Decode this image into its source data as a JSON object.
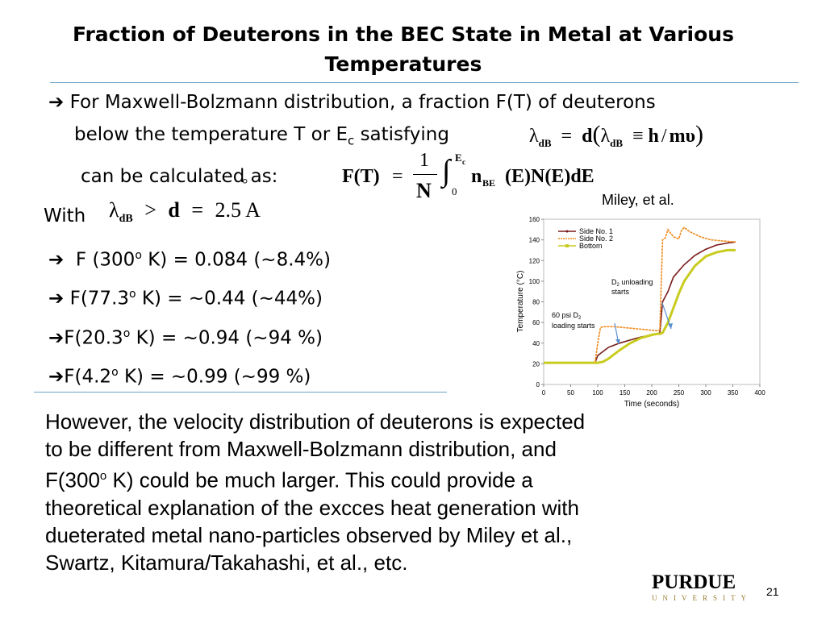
{
  "slide": {
    "title": "Fraction of Deuterons in the BEC State in Metal at Various Temperatures",
    "bullet1_line1": "For Maxwell-Bolzmann distribution, a fraction F(T) of deuterons",
    "bullet1_line2a": "below the temperature T or E",
    "bullet1_line2_sub": "c",
    "bullet1_line2b": " satisfying",
    "bullet1_line3": "can be calculated as:",
    "with_label": "With",
    "results": [
      {
        "pre": "F (300",
        "sup": "o",
        "post": " K) = 0.084 (~8.4%)"
      },
      {
        "pre": "F(77.3",
        "sup": "o",
        "post": " K) = ~0.44 (~44%)"
      },
      {
        "pre": "F(20.3",
        "sup": "o",
        "post": " K) = ~0.94 (~94 %)"
      },
      {
        "pre": "F(4.2",
        "sup": "o",
        "post": " K)  =  ~0.99 (~99 %)"
      }
    ],
    "citation": "Miley, et al.",
    "paragraph": {
      "l1": "However, the velocity distribution of deuterons is expected",
      "l2": "to be different from Maxwell-Bolzmann distribution, and",
      "l3a": "F(300",
      "l3sup": "o",
      "l3b": " K) could be much larger.  This could provide a",
      "l4": "theoretical explanation of the excces heat generation with",
      "l5": "dueterated metal nano-particles observed by Miley et al.,",
      "l6": "Swartz, Kitamura/Takahashi, et al., etc."
    },
    "logo_main": "PURDUE",
    "logo_sub": "UNIVERSITY",
    "page_number": "21"
  },
  "equations": {
    "eq1": {
      "lambda": "λ",
      "sub_dB": "dB",
      "eq": "=",
      "d": "d",
      "lparen": "(",
      "equiv": "≡",
      "h": "h",
      "slash": "/",
      "mv": "mυ",
      "rparen": ")"
    },
    "eq2": {
      "lhs": "F(T)",
      "eq": "=",
      "num": "1",
      "den": "N",
      "integral": "∫",
      "upper": "E",
      "upper_sub": "c",
      "lower": "0",
      "n": "n",
      "n_sub": "BE",
      "rest": "(E)N(E)dE"
    },
    "eq3": {
      "lambda": "λ",
      "sub_dB": "dB",
      "gt": ">",
      "d": "d",
      "eq": "=",
      "value": "2.5",
      "unit": "A",
      "ring": "°"
    }
  },
  "colors": {
    "rule": "#6fa3c4",
    "side1": "#7a1a1a",
    "side2": "#f08a1c",
    "bottom": "#c8cc1e",
    "annotation_arrow": "#5b8fd0"
  },
  "chart_data": {
    "type": "line",
    "title": "",
    "xlabel": "Time (seconds)",
    "ylabel": "Temperature (°C)",
    "xlim": [
      0,
      400
    ],
    "ylim": [
      0,
      160
    ],
    "xticks": [
      0,
      50,
      100,
      150,
      200,
      250,
      300,
      350,
      400
    ],
    "yticks": [
      0,
      20,
      40,
      60,
      80,
      100,
      120,
      140,
      160
    ],
    "legend_position": "top-left",
    "annotations": [
      {
        "text_line1": "D",
        "text_sub": "2",
        "text_rest": " unloading",
        "text_line2": "starts"
      },
      {
        "text_line1": "60 psi D",
        "text_sub": "2",
        "text_line2": "loading starts"
      }
    ],
    "series": [
      {
        "name": "Side No. 1",
        "color": "#7a1a1a",
        "x": [
          0,
          50,
          95,
          100,
          110,
          120,
          140,
          160,
          180,
          200,
          210,
          215,
          220,
          230,
          240,
          260,
          280,
          300,
          320,
          340,
          355
        ],
        "y": [
          21,
          21,
          21,
          28,
          32,
          36,
          40,
          43,
          46,
          48,
          49,
          50,
          80,
          90,
          104,
          116,
          125,
          131,
          135,
          137,
          138
        ]
      },
      {
        "name": "Side No. 2",
        "color": "#f08a1c",
        "x": [
          0,
          50,
          95,
          100,
          105,
          110,
          130,
          150,
          170,
          190,
          210,
          215,
          220,
          225,
          230,
          240,
          250,
          255,
          260,
          270,
          290,
          310,
          330,
          355
        ],
        "y": [
          21,
          21,
          21,
          40,
          55,
          56,
          56,
          55,
          54,
          53,
          52,
          53,
          140,
          142,
          150,
          143,
          141,
          149,
          152,
          148,
          143,
          140,
          139,
          138
        ]
      },
      {
        "name": "Bottom",
        "color": "#c8cc1e",
        "x": [
          0,
          50,
          95,
          100,
          110,
          120,
          140,
          160,
          180,
          200,
          210,
          215,
          220,
          230,
          240,
          250,
          260,
          280,
          300,
          320,
          340,
          355
        ],
        "y": [
          21,
          21,
          21,
          21,
          22,
          25,
          33,
          40,
          45,
          48,
          49,
          49,
          50,
          60,
          74,
          88,
          100,
          115,
          124,
          128,
          130,
          130
        ]
      }
    ]
  }
}
